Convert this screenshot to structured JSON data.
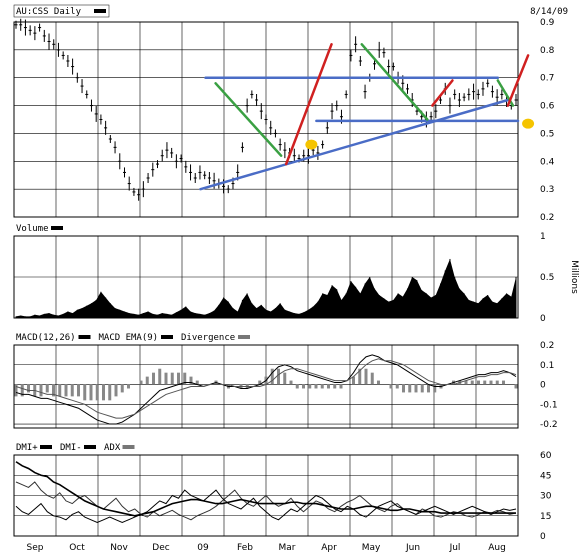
{
  "chart_data": [
    {
      "type": "line",
      "header": {
        "symbol": "AU:CSS Daily",
        "date": "8/14/09"
      },
      "x_labels": [
        "Sep",
        "Oct",
        "Nov",
        "Dec",
        "09",
        "Feb",
        "Mar",
        "Apr",
        "May",
        "Jun",
        "Jul",
        "Aug"
      ],
      "y_ticks": [
        "0.9",
        "0.8",
        "0.7",
        "0.6",
        "0.5",
        "0.4",
        "0.3",
        "0.2"
      ],
      "ylim": [
        0.2,
        0.9
      ],
      "grid": true,
      "series": [
        {
          "values": [
            0.89,
            0.89,
            0.88,
            0.87,
            0.86,
            0.88,
            0.85,
            0.83,
            0.82,
            0.8,
            0.78,
            0.76,
            0.74,
            0.7,
            0.67,
            0.64,
            0.6,
            0.57,
            0.55,
            0.52,
            0.48,
            0.45,
            0.4,
            0.36,
            0.32,
            0.29,
            0.28,
            0.3,
            0.34,
            0.37,
            0.39,
            0.42,
            0.44,
            0.43,
            0.4,
            0.41,
            0.38,
            0.36,
            0.34,
            0.36,
            0.35,
            0.34,
            0.33,
            0.32,
            0.31,
            0.3,
            0.32,
            0.36,
            0.45,
            0.6,
            0.64,
            0.62,
            0.58,
            0.55,
            0.52,
            0.5,
            0.46,
            0.44,
            0.43,
            0.42,
            0.41,
            0.42,
            0.42,
            0.44,
            0.43,
            0.46,
            0.52,
            0.58,
            0.6,
            0.56,
            0.64,
            0.78,
            0.82,
            0.76,
            0.65,
            0.7,
            0.75,
            0.8,
            0.79,
            0.74,
            0.74,
            0.7,
            0.68,
            0.66,
            0.62,
            0.58,
            0.56,
            0.55,
            0.56,
            0.58,
            0.62,
            0.66,
            0.6,
            0.64,
            0.62,
            0.63,
            0.64,
            0.65,
            0.64,
            0.66,
            0.68,
            0.65,
            0.63,
            0.64,
            0.62,
            0.6,
            0.62
          ]
        }
      ],
      "trend_lines": [
        {
          "color": "#4a6cc6",
          "from": [
            0.38,
            0.7
          ],
          "to": [
            0.96,
            0.7
          ]
        },
        {
          "color": "#4a6cc6",
          "from": [
            0.6,
            0.545
          ],
          "to": [
            1.0,
            0.545
          ]
        },
        {
          "color": "#4a6cc6",
          "from": [
            0.37,
            0.3
          ],
          "to": [
            0.98,
            0.62
          ]
        },
        {
          "color": "#3aa043",
          "from": [
            0.4,
            0.68
          ],
          "to": [
            0.53,
            0.42
          ]
        },
        {
          "color": "#3aa043",
          "from": [
            0.69,
            0.82
          ],
          "to": [
            0.82,
            0.55
          ]
        },
        {
          "color": "#3aa043",
          "from": [
            0.96,
            0.69
          ],
          "to": [
            0.99,
            0.6
          ]
        },
        {
          "color": "#d02020",
          "from": [
            0.54,
            0.39
          ],
          "to": [
            0.63,
            0.82
          ]
        },
        {
          "color": "#d02020",
          "from": [
            0.83,
            0.6
          ],
          "to": [
            0.87,
            0.69
          ]
        },
        {
          "color": "#d02020",
          "from": [
            0.98,
            0.6
          ],
          "to": [
            1.02,
            0.78
          ]
        }
      ],
      "markers": [
        {
          "color": "#f5c400",
          "at": [
            0.59,
            0.46
          ]
        },
        {
          "color": "#f5c400",
          "at": [
            1.02,
            0.535
          ]
        }
      ]
    },
    {
      "type": "bar",
      "legend": [
        "Volume"
      ],
      "y_ticks": [
        "1",
        "0.5",
        "0"
      ],
      "ylim": [
        0,
        1
      ],
      "ylabel": "Millions",
      "values": [
        0.02,
        0.03,
        0.02,
        0.02,
        0.04,
        0.03,
        0.05,
        0.06,
        0.04,
        0.03,
        0.05,
        0.08,
        0.06,
        0.1,
        0.12,
        0.15,
        0.18,
        0.22,
        0.32,
        0.25,
        0.18,
        0.12,
        0.1,
        0.08,
        0.06,
        0.05,
        0.04,
        0.06,
        0.08,
        0.05,
        0.04,
        0.06,
        0.05,
        0.04,
        0.07,
        0.1,
        0.14,
        0.08,
        0.06,
        0.05,
        0.04,
        0.06,
        0.09,
        0.16,
        0.25,
        0.2,
        0.12,
        0.08,
        0.22,
        0.3,
        0.18,
        0.12,
        0.16,
        0.1,
        0.08,
        0.12,
        0.18,
        0.1,
        0.08,
        0.06,
        0.05,
        0.07,
        0.1,
        0.14,
        0.2,
        0.3,
        0.28,
        0.4,
        0.35,
        0.22,
        0.3,
        0.45,
        0.38,
        0.3,
        0.42,
        0.5,
        0.36,
        0.28,
        0.24,
        0.2,
        0.22,
        0.3,
        0.26,
        0.36,
        0.5,
        0.46,
        0.34,
        0.3,
        0.25,
        0.28,
        0.42,
        0.58,
        0.72,
        0.5,
        0.36,
        0.3,
        0.22,
        0.2,
        0.18,
        0.24,
        0.28,
        0.2,
        0.18,
        0.24,
        0.3,
        0.26,
        0.5
      ]
    },
    {
      "type": "line",
      "legend": [
        "MACD(12,26)",
        "MACD EMA(9)",
        "Divergence"
      ],
      "y_ticks": [
        "0.2",
        "0.1",
        "0",
        "-0.1",
        "-0.2"
      ],
      "ylim": [
        -0.22,
        0.2
      ],
      "series": [
        {
          "values": [
            -0.04,
            -0.05,
            -0.05,
            -0.06,
            -0.07,
            -0.07,
            -0.08,
            -0.09,
            -0.1,
            -0.11,
            -0.12,
            -0.14,
            -0.16,
            -0.18,
            -0.19,
            -0.2,
            -0.2,
            -0.19,
            -0.17,
            -0.15,
            -0.12,
            -0.09,
            -0.06,
            -0.03,
            -0.02,
            -0.01,
            0.0,
            0.01,
            0.01,
            0.0,
            -0.01,
            0.0,
            0.01,
            0.0,
            -0.01,
            -0.01,
            -0.02,
            -0.02,
            -0.01,
            0.0,
            0.02,
            0.06,
            0.09,
            0.1,
            0.09,
            0.07,
            0.06,
            0.05,
            0.04,
            0.03,
            0.02,
            0.01,
            0.01,
            0.02,
            0.06,
            0.11,
            0.14,
            0.15,
            0.14,
            0.12,
            0.11,
            0.1,
            0.08,
            0.06,
            0.04,
            0.02,
            0.0,
            -0.01,
            -0.01,
            0.0,
            0.01,
            0.02,
            0.03,
            0.04,
            0.05,
            0.05,
            0.06,
            0.06,
            0.07,
            0.06,
            0.04
          ]
        },
        {
          "values": [
            -0.01,
            -0.02,
            -0.03,
            -0.03,
            -0.04,
            -0.05,
            -0.05,
            -0.06,
            -0.07,
            -0.08,
            -0.09,
            -0.1,
            -0.12,
            -0.14,
            -0.15,
            -0.16,
            -0.17,
            -0.17,
            -0.16,
            -0.15,
            -0.13,
            -0.11,
            -0.09,
            -0.07,
            -0.05,
            -0.04,
            -0.03,
            -0.02,
            -0.01,
            -0.01,
            -0.01,
            0.0,
            0.0,
            0.0,
            0.0,
            -0.01,
            -0.01,
            -0.01,
            -0.01,
            -0.01,
            0.0,
            0.02,
            0.05,
            0.07,
            0.08,
            0.08,
            0.07,
            0.06,
            0.05,
            0.04,
            0.03,
            0.02,
            0.02,
            0.02,
            0.04,
            0.07,
            0.1,
            0.12,
            0.13,
            0.12,
            0.12,
            0.11,
            0.1,
            0.08,
            0.06,
            0.04,
            0.02,
            0.01,
            0.0,
            0.0,
            0.0,
            0.01,
            0.02,
            0.03,
            0.04,
            0.04,
            0.05,
            0.05,
            0.06,
            0.06,
            0.05
          ]
        }
      ]
    },
    {
      "type": "line",
      "legend": [
        "DMI+",
        "DMI-",
        "ADX"
      ],
      "y_ticks": [
        "60",
        "45",
        "30",
        "15",
        "0"
      ],
      "ylim": [
        0,
        60
      ],
      "series": [
        {
          "values": [
            40,
            38,
            36,
            40,
            34,
            30,
            28,
            32,
            26,
            24,
            28,
            30,
            26,
            22,
            20,
            24,
            28,
            22,
            18,
            20,
            16,
            14,
            18,
            15,
            17,
            19,
            16,
            14,
            12,
            15,
            17,
            19,
            22,
            26,
            30,
            34,
            28,
            24,
            22,
            26,
            30,
            25,
            22,
            24,
            28,
            22,
            18,
            22,
            26,
            24,
            20,
            18,
            22,
            25,
            27,
            30,
            26,
            22,
            20,
            18,
            22,
            24,
            20,
            18,
            16,
            20,
            18,
            15,
            14,
            16,
            18,
            17,
            15,
            14,
            16,
            18,
            17,
            19,
            18,
            16,
            17
          ]
        },
        {
          "values": [
            22,
            18,
            16,
            20,
            24,
            18,
            15,
            14,
            12,
            16,
            18,
            14,
            12,
            10,
            12,
            14,
            12,
            10,
            12,
            14,
            16,
            18,
            22,
            26,
            24,
            30,
            28,
            34,
            30,
            28,
            26,
            30,
            34,
            28,
            24,
            22,
            20,
            24,
            28,
            22,
            18,
            14,
            12,
            16,
            20,
            18,
            22,
            26,
            30,
            28,
            24,
            20,
            18,
            22,
            20,
            16,
            14,
            18,
            22,
            24,
            26,
            22,
            20,
            18,
            16,
            18,
            20,
            22,
            20,
            18,
            16,
            18,
            20,
            22,
            20,
            18,
            16,
            18,
            20,
            19,
            20
          ]
        },
        {
          "values": [
            55,
            52,
            50,
            47,
            45,
            44,
            40,
            38,
            35,
            32,
            29,
            26,
            24,
            22,
            20,
            19,
            18,
            17,
            16,
            15,
            16,
            17,
            18,
            20,
            22,
            24,
            25,
            26,
            27,
            27,
            26,
            25,
            24,
            24,
            25,
            26,
            27,
            26,
            25,
            24,
            24,
            24,
            24,
            24,
            25,
            25,
            24,
            24,
            24,
            23,
            22,
            21,
            20,
            20,
            20,
            21,
            22,
            22,
            21,
            20,
            19,
            19,
            20,
            20,
            19,
            18,
            18,
            18,
            17,
            17,
            17,
            17,
            17,
            17,
            17,
            17,
            17,
            17,
            17,
            17,
            17
          ]
        }
      ]
    }
  ]
}
